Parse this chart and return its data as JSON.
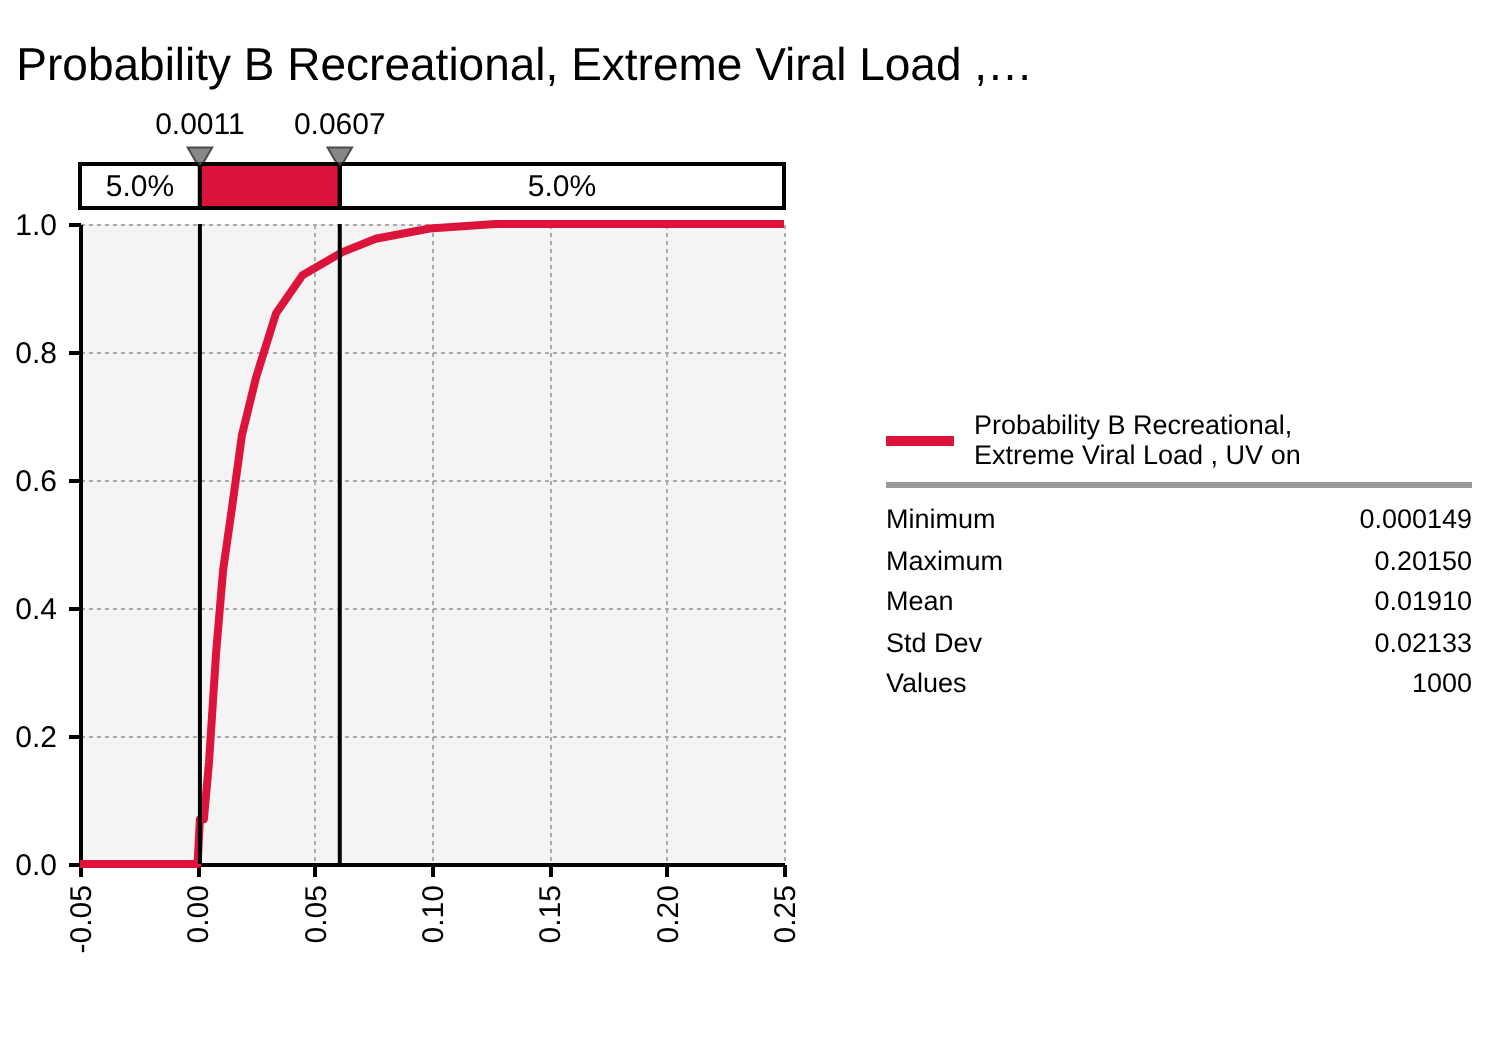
{
  "chart_data": {
    "type": "line",
    "title": "Probability B Recreational, Extreme Viral Load ,…",
    "series": [
      {
        "name": "Probability B Recreational, Extreme Viral Load , UV on",
        "color": "#dc143c",
        "x": [
          -0.05,
          0.0001,
          0.0011,
          0.0028,
          0.005,
          0.008,
          0.011,
          0.0149,
          0.019,
          0.025,
          0.0335,
          0.0448,
          0.0618,
          0.076,
          0.099,
          0.127,
          0.2015,
          0.25
        ],
        "values": [
          0,
          0,
          0.07,
          0.07,
          0.16,
          0.33,
          0.46,
          0.56,
          0.67,
          0.76,
          0.86,
          0.92,
          0.956,
          0.977,
          0.993,
          1,
          1,
          1
        ]
      }
    ],
    "xlim": [
      -0.05,
      0.25
    ],
    "xticks": [
      {
        "value": -0.05,
        "label": "-0.05"
      },
      {
        "value": 0,
        "label": "0.00"
      },
      {
        "value": 0.05,
        "label": "0.05"
      },
      {
        "value": 0.1,
        "label": "0.10"
      },
      {
        "value": 0.15,
        "label": "0.15"
      },
      {
        "value": 0.2,
        "label": "0.20"
      },
      {
        "value": 0.25,
        "label": "0.25"
      }
    ],
    "ylim": [
      0,
      1
    ],
    "yticks": [
      {
        "value": 0,
        "label": "0.0"
      },
      {
        "value": 0.2,
        "label": "0.2"
      },
      {
        "value": 0.4,
        "label": "0.4"
      },
      {
        "value": 0.6,
        "label": "0.6"
      },
      {
        "value": 0.8,
        "label": "0.8"
      },
      {
        "value": 1,
        "label": "1.0"
      }
    ],
    "ref_lines": [
      {
        "axis": "x",
        "value": 0.0011,
        "label": "0.0011"
      },
      {
        "axis": "x",
        "value": 0.0607,
        "label": "0.0607"
      }
    ],
    "annotations": [
      "5.0%",
      "5.0%",
      "Minimum",
      "0.000149",
      "Maximum",
      "0.20150",
      "Mean",
      "0.01910",
      "Std Dev",
      "0.02133",
      "Values",
      "1000"
    ],
    "grid": true,
    "legend": "right",
    "line_style": "solid",
    "marker": "none"
  }
}
